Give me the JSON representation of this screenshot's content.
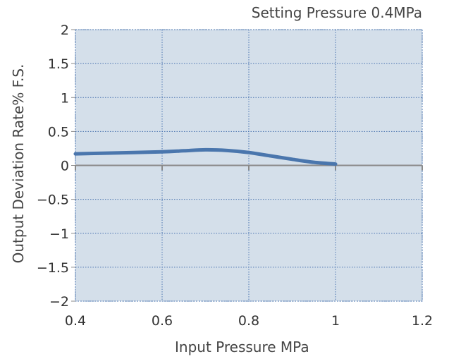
{
  "chart_data": {
    "type": "line",
    "title": "Setting Pressure 0.4MPa",
    "xlabel": "Input Pressure MPa",
    "ylabel": "Output Deviation Rate% F.S.",
    "xlim": [
      0.4,
      1.2
    ],
    "ylim": [
      -2,
      2
    ],
    "xticks": [
      0.4,
      0.6,
      0.8,
      1,
      1.2
    ],
    "xtick_labels": [
      "0.4",
      "0.6",
      "0.8",
      "1",
      "1.2"
    ],
    "yticks": [
      2,
      1.5,
      1,
      0.5,
      0,
      -0.5,
      -1,
      -1.5,
      -2
    ],
    "ytick_labels": [
      "2",
      "1.5",
      "1",
      "0.5",
      "0",
      "−0.5",
      "−1",
      "−1.5",
      "−2"
    ],
    "grid": true,
    "plot_background": "#d4dfea",
    "line_color": "#4a76ad",
    "series": [
      {
        "x": [
          0.4,
          0.5,
          0.6,
          0.65,
          0.7,
          0.75,
          0.8,
          0.85,
          0.9,
          0.95,
          1.0
        ],
        "y": [
          0.17,
          0.185,
          0.2,
          0.215,
          0.23,
          0.22,
          0.19,
          0.14,
          0.09,
          0.045,
          0.02
        ]
      }
    ]
  }
}
